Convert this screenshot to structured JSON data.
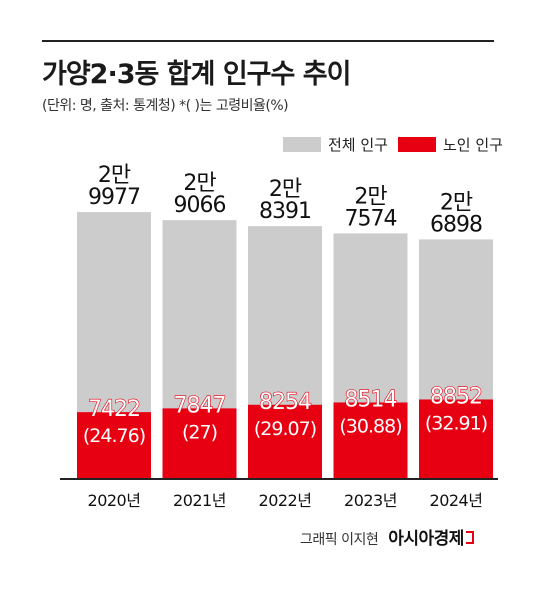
{
  "title": "가양2·3동 합계 인구수 추이",
  "subtitle": "(단위: 명, 출처: 통계청)  *( )는 고령비율(%)",
  "legend": {
    "total_label": "전체 인구",
    "elderly_label": "노인 인구"
  },
  "colors": {
    "total": "#cccccc",
    "elderly": "#e60012",
    "elderly_text": "#ffffff",
    "axis": "#222222"
  },
  "credit": {
    "byline": "그래픽 이지현",
    "brand": "아시아경제"
  },
  "chart_data": {
    "type": "bar",
    "stacked": "overlay",
    "categories": [
      "2020년",
      "2021년",
      "2022년",
      "2023년",
      "2024년"
    ],
    "series": [
      {
        "name": "전체 인구",
        "values": [
          29977,
          29066,
          28391,
          27574,
          26898
        ],
        "labels": [
          [
            "2만",
            "9977"
          ],
          [
            "2만",
            "9066"
          ],
          [
            "2만",
            "8391"
          ],
          [
            "2만",
            "7574"
          ],
          [
            "2만",
            "6898"
          ]
        ]
      },
      {
        "name": "노인 인구",
        "values": [
          7422,
          7847,
          8254,
          8514,
          8852
        ],
        "ratio_labels": [
          "(24.76)",
          "(27)",
          "(29.07)",
          "(30.88)",
          "(32.91)"
        ]
      }
    ],
    "ylim": [
      0,
      31000
    ],
    "legend_position": "top-right",
    "grid": false
  }
}
